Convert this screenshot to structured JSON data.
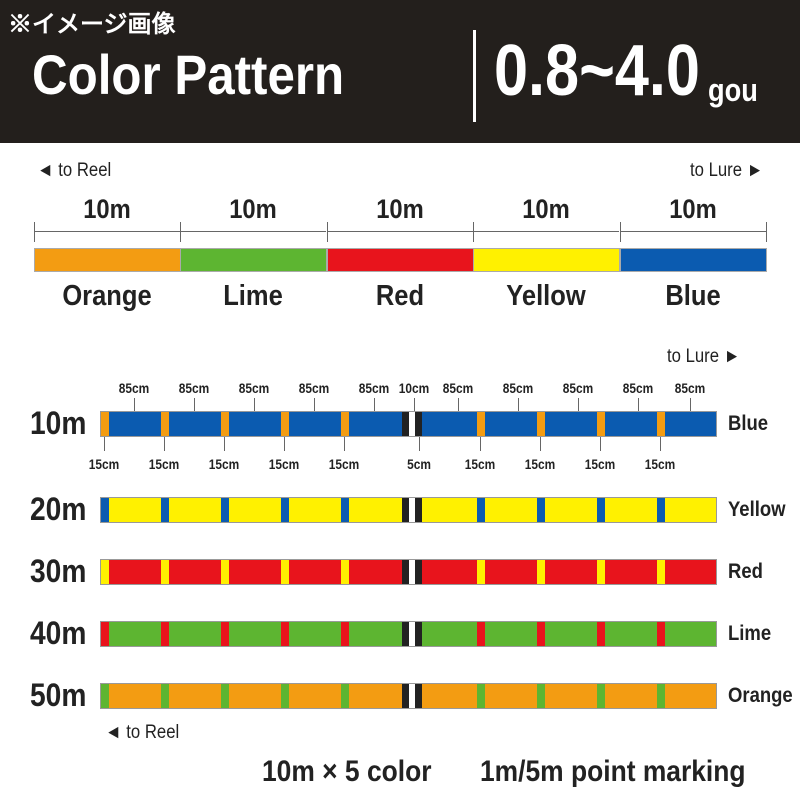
{
  "header": {
    "note": "※イメージ画像",
    "title": "Color Pattern",
    "size": "0.8~4.0",
    "unit": "gou"
  },
  "top": {
    "to_reel": "◄ to Reel",
    "to_lure": "to Lure ►",
    "segments": [
      {
        "length": "10m",
        "name": "Orange",
        "color": "#f39c12"
      },
      {
        "length": "10m",
        "name": "Lime",
        "color": "#5db531"
      },
      {
        "length": "10m",
        "name": "Red",
        "color": "#e8141c"
      },
      {
        "length": "10m",
        "name": "Yellow",
        "color": "#fff100"
      },
      {
        "length": "10m",
        "name": "Blue",
        "color": "#0b5bb0"
      }
    ]
  },
  "detail": {
    "to_lure": "to Lure ►",
    "to_reel": "◄ to Reel",
    "top_labels": [
      "85cm",
      "85cm",
      "85cm",
      "85cm",
      "85cm",
      "10cm",
      "85cm",
      "85cm",
      "85cm",
      "85cm",
      "85cm"
    ],
    "bottom_labels": [
      "15cm",
      "15cm",
      "15cm",
      "15cm",
      "15cm",
      "5cm",
      "15cm",
      "15cm",
      "15cm",
      "15cm"
    ],
    "rows": [
      {
        "length": "10m",
        "name": "Blue",
        "color": "#0b5bb0",
        "marker": "#f39c12"
      },
      {
        "length": "20m",
        "name": "Yellow",
        "color": "#fff100",
        "marker": "#0b5bb0"
      },
      {
        "length": "30m",
        "name": "Red",
        "color": "#e8141c",
        "marker": "#fff100"
      },
      {
        "length": "40m",
        "name": "Lime",
        "color": "#5db531",
        "marker": "#e8141c"
      },
      {
        "length": "50m",
        "name": "Orange",
        "color": "#f39c12",
        "marker": "#5db531"
      }
    ]
  },
  "footer": {
    "left": "10m × 5 color",
    "right": "1m/5m point marking"
  }
}
